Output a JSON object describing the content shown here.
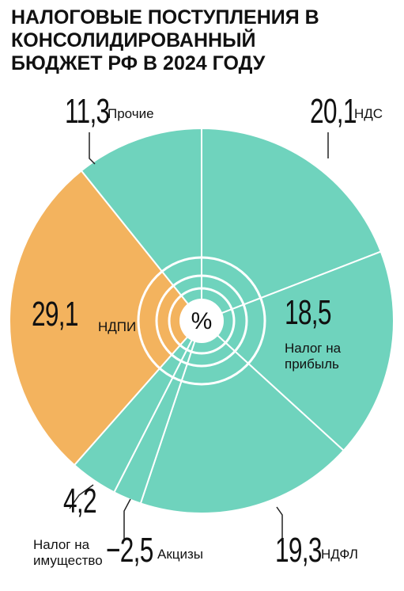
{
  "chart_data": {
    "type": "pie",
    "title": "НАЛОГОВЫЕ ПОСТУПЛЕНИЯ В КОНСОЛИДИРОВАННЫЙ БЮДЖЕТ РФ В 2024 ГОДУ",
    "unit": "%",
    "categories": [
      "НДС",
      "Налог на прибыль",
      "НДФЛ",
      "Акцизы",
      "Налог на имущество",
      "НДПИ",
      "Прочие"
    ],
    "values": [
      20.1,
      18.5,
      19.3,
      -2.5,
      4.2,
      29.1,
      11.3
    ],
    "value_labels": [
      "20,1",
      "18,5",
      "19,3",
      "−2,5",
      "4,2",
      "29,1",
      "11,3"
    ],
    "colors": [
      "#6fd3bd",
      "#6fd3bd",
      "#6fd3bd",
      "#6fd3bd",
      "#6fd3bd",
      "#f3b35e",
      "#6fd3bd"
    ]
  }
}
